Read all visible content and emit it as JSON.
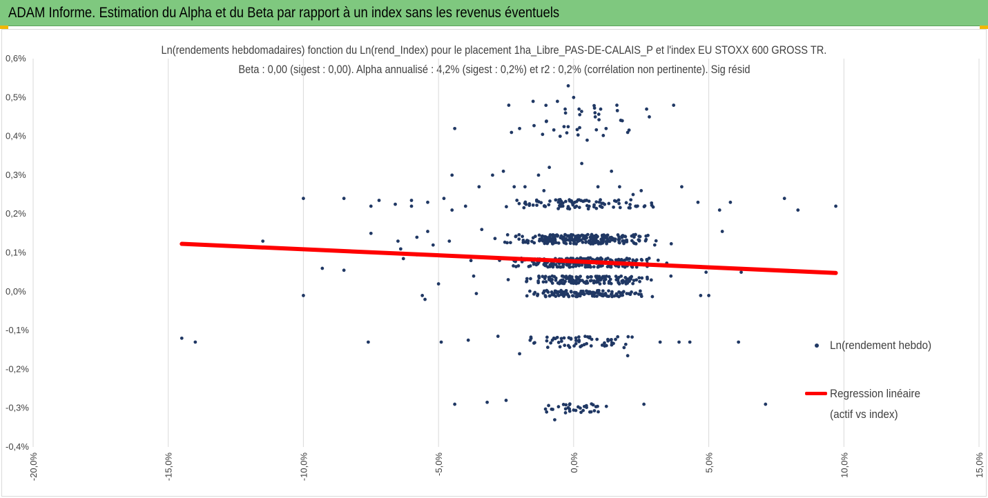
{
  "banner": {
    "title": "ADAM Informe. Estimation du Alpha et du Beta par rapport à un index sans les revenus éventuels"
  },
  "colors": {
    "banner_bg": "#7fc87f",
    "accent_corner": "#f2b705",
    "point": "#203864",
    "regression": "#ff0000",
    "grid": "#d9d9d9",
    "text": "#404040"
  },
  "chart_data": {
    "type": "scatter",
    "title": "Ln(rendements hebdomadaires) fonction du Ln(rend_Index) pour le placement 1ha_Libre_PAS-DE-CALAIS_P et l'index EU STOXX 600 GROSS TR.",
    "subtitle": "Beta : 0,00 (sigest : 0,00). Alpha annualisé : 4,2% (sigest : 0,2%) et r2 : 0,2% (corrélation non pertinente). Sig résid",
    "xlabel": "",
    "ylabel": "",
    "xlim": [
      -20,
      15
    ],
    "ylim": [
      -0.4,
      0.6
    ],
    "x_ticks": [
      "-20,0%",
      "-15,0%",
      "-10,0%",
      "-5,0%",
      "0,0%",
      "5,0%",
      "10,0%",
      "15,0%"
    ],
    "y_ticks": [
      "0,6%",
      "0,5%",
      "0,4%",
      "0,3%",
      "0,2%",
      "0,1%",
      "0,0%",
      "-0,1%",
      "-0,2%",
      "-0,3%",
      "-0,4%"
    ],
    "grid": "vertical",
    "legend_position": "right",
    "series": [
      {
        "name": "Ln(rendement hebdo)",
        "kind": "scatter",
        "points": [
          [
            -14.5,
            -0.12
          ],
          [
            -14.0,
            -0.13
          ],
          [
            -11.5,
            0.13
          ],
          [
            -10.0,
            0.24
          ],
          [
            -10.0,
            -0.01
          ],
          [
            -9.3,
            0.06
          ],
          [
            -8.5,
            0.24
          ],
          [
            -8.5,
            0.055
          ],
          [
            -7.6,
            -0.13
          ],
          [
            -7.5,
            0.22
          ],
          [
            -7.5,
            0.15
          ],
          [
            -7.2,
            0.235
          ],
          [
            -6.6,
            0.225
          ],
          [
            -6.5,
            0.13
          ],
          [
            -6.4,
            0.11
          ],
          [
            -6.3,
            0.085
          ],
          [
            -6.0,
            0.235
          ],
          [
            -6.0,
            0.22
          ],
          [
            -5.8,
            0.14
          ],
          [
            -5.8,
            0.095
          ],
          [
            -5.6,
            -0.01
          ],
          [
            -5.5,
            -0.02
          ],
          [
            -5.4,
            0.23
          ],
          [
            -5.4,
            0.155
          ],
          [
            -5.2,
            0.12
          ],
          [
            -5.0,
            0.02
          ],
          [
            -4.9,
            -0.13
          ],
          [
            -4.8,
            0.24
          ],
          [
            -4.6,
            0.13
          ],
          [
            -4.5,
            0.3
          ],
          [
            -4.5,
            0.21
          ],
          [
            -4.4,
            0.42
          ],
          [
            -4.4,
            -0.29
          ],
          [
            -4.0,
            0.22
          ],
          [
            -3.9,
            -0.125
          ],
          [
            -3.8,
            0.08
          ],
          [
            -3.7,
            0.04
          ],
          [
            -3.6,
            -0.005
          ],
          [
            -3.5,
            0.27
          ],
          [
            -3.4,
            0.16
          ],
          [
            -3.2,
            -0.285
          ],
          [
            -3.0,
            0.3
          ],
          [
            -2.8,
            -0.115
          ],
          [
            -2.6,
            0.31
          ],
          [
            -2.5,
            -0.28
          ],
          [
            -2.4,
            0.48
          ],
          [
            -2.3,
            0.41
          ],
          [
            -2.0,
            0.42
          ],
          [
            -2.0,
            -0.16
          ],
          [
            -1.8,
            0.27
          ],
          [
            -1.5,
            0.49
          ],
          [
            -1.3,
            0.3
          ],
          [
            -1.0,
            -0.31
          ],
          [
            -0.9,
            0.32
          ],
          [
            -0.7,
            -0.33
          ],
          [
            -0.6,
            0.49
          ],
          [
            -0.5,
            0.4
          ],
          [
            -0.3,
            0.46
          ],
          [
            0.0,
            0.5
          ],
          [
            0.0,
            -0.305
          ],
          [
            0.2,
            0.47
          ],
          [
            0.3,
            0.33
          ],
          [
            0.5,
            0.39
          ],
          [
            0.6,
            -0.31
          ],
          [
            0.8,
            0.45
          ],
          [
            1.0,
            0.47
          ],
          [
            1.2,
            0.42
          ],
          [
            1.4,
            0.31
          ],
          [
            1.6,
            0.48
          ],
          [
            1.8,
            0.44
          ],
          [
            2.0,
            0.41
          ],
          [
            2.0,
            -0.165
          ],
          [
            2.5,
            0.26
          ],
          [
            2.6,
            -0.29
          ],
          [
            2.7,
            0.47
          ],
          [
            2.8,
            0.45
          ],
          [
            3.0,
            0.12
          ],
          [
            3.2,
            -0.13
          ],
          [
            3.6,
            0.04
          ],
          [
            3.7,
            0.48
          ],
          [
            3.9,
            -0.13
          ],
          [
            4.0,
            0.27
          ],
          [
            4.3,
            -0.13
          ],
          [
            4.6,
            0.23
          ],
          [
            4.7,
            -0.01
          ],
          [
            4.9,
            0.05
          ],
          [
            5.0,
            -0.01
          ],
          [
            5.4,
            0.21
          ],
          [
            5.5,
            0.155
          ],
          [
            5.8,
            0.23
          ],
          [
            6.1,
            -0.13
          ],
          [
            6.2,
            0.05
          ],
          [
            7.1,
            -0.29
          ],
          [
            7.8,
            0.24
          ],
          [
            8.3,
            0.21
          ],
          [
            9.7,
            0.22
          ],
          [
            -0.2,
            0.53
          ],
          [
            0.9,
            0.27
          ],
          [
            -1.1,
            0.26
          ],
          [
            1.7,
            0.27
          ],
          [
            -2.2,
            0.27
          ],
          [
            2.2,
            0.25
          ]
        ],
        "dense_clusters_note_free": true
      },
      {
        "name": "Regression linéaire (actif vs index)",
        "kind": "line",
        "points": [
          [
            -14.5,
            0.123
          ],
          [
            9.7,
            0.048
          ]
        ]
      }
    ],
    "legend": [
      {
        "label": "Ln(rendement hebdo)",
        "marker": "dot"
      },
      {
        "label_line1": "Regression linéaire",
        "label_line2": "(actif vs index)",
        "marker": "line"
      }
    ]
  }
}
